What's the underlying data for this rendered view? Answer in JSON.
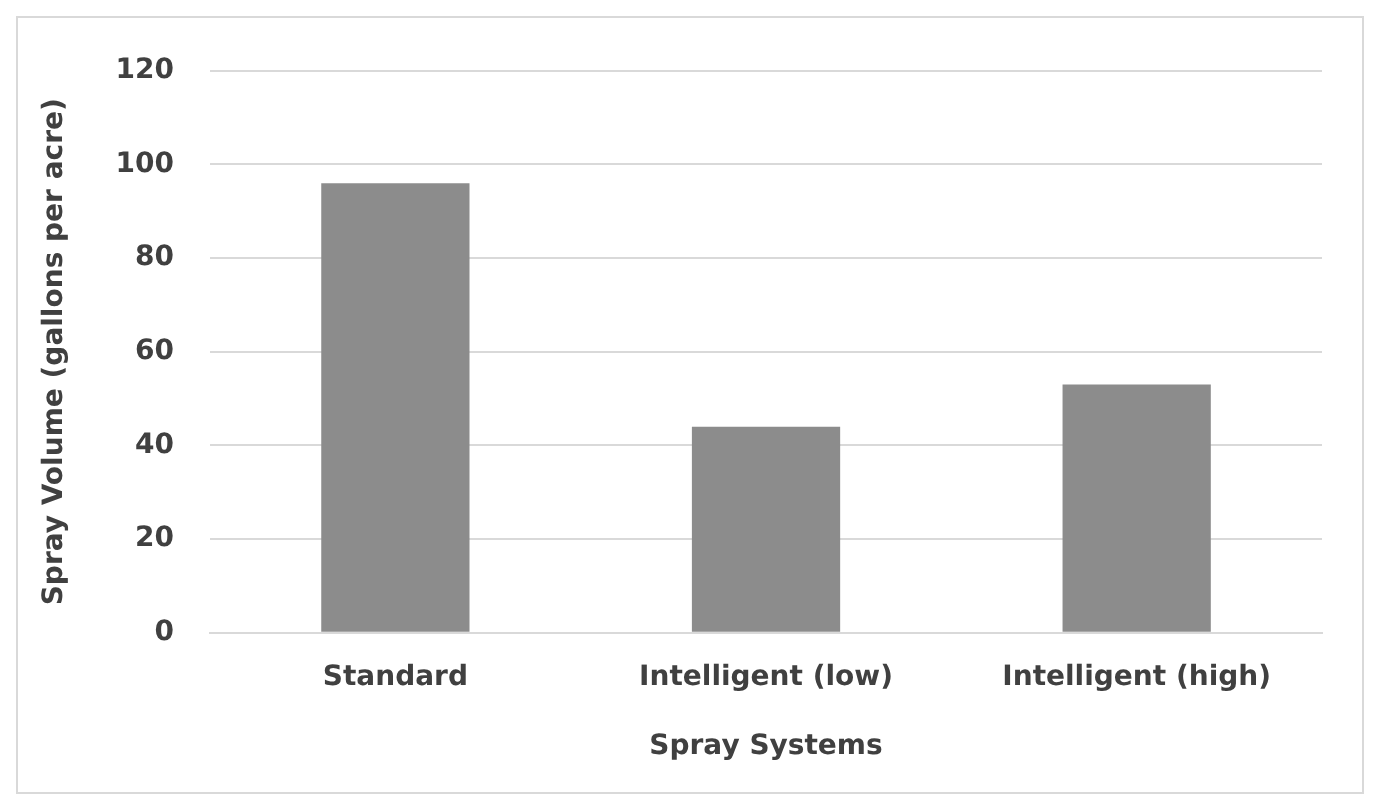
{
  "chart_data": {
    "type": "bar",
    "xlabel": "Spray Systems",
    "ylabel": "Spray Volume (gallons per acre)",
    "categories": [
      "Standard",
      "Intelligent (low)",
      "Intelligent (high)"
    ],
    "values": [
      96,
      44,
      53
    ],
    "color": "#8c8c8c",
    "ylim": [
      0,
      120
    ],
    "yticks": [
      0,
      20,
      40,
      60,
      80,
      100,
      120
    ],
    "grid": "y",
    "legend": false
  }
}
